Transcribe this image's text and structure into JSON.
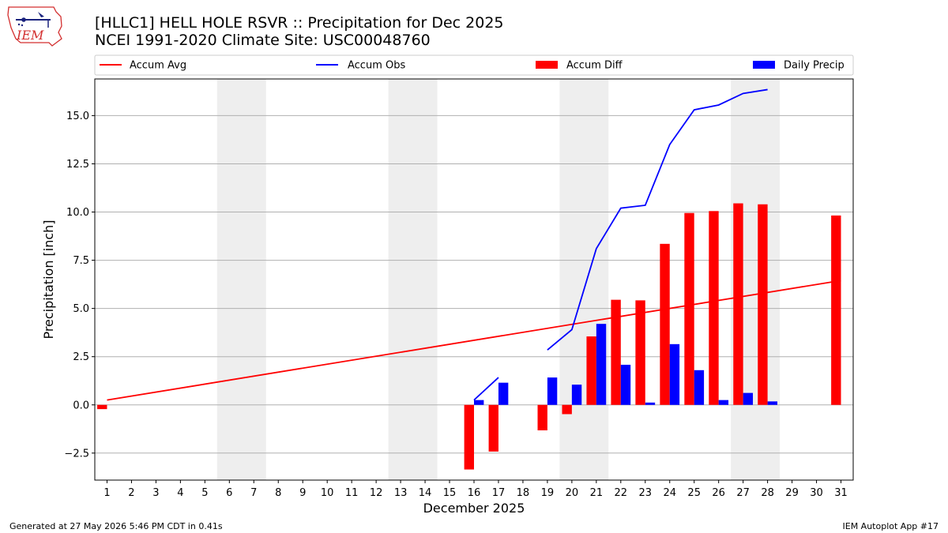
{
  "header": {
    "title_line1": "[HLLC1] HELL HOLE RSVR :: Precipitation for Dec 2025",
    "title_line2": "NCEI 1991-2020 Climate Site: USC00048760"
  },
  "logo": {
    "text": "IEM",
    "color": "#d32f2f",
    "accent": "#1a237e"
  },
  "footer": {
    "left": "Generated at 27 May 2026 5:46 PM CDT in 0.41s",
    "right": "IEM Autoplot App #17"
  },
  "chart_data": {
    "type": "bar",
    "xlabel": "December 2025",
    "ylabel": "Precipitation [inch]",
    "ylim": [
      -3.9,
      16.9
    ],
    "yticks": [
      -2.5,
      0.0,
      2.5,
      5.0,
      7.5,
      10.0,
      12.5,
      15.0
    ],
    "ytick_labels": [
      "−2.5",
      "0.0",
      "2.5",
      "5.0",
      "7.5",
      "10.0",
      "12.5",
      "15.0"
    ],
    "xlim": [
      0.5,
      31.5
    ],
    "days": [
      1,
      2,
      3,
      4,
      5,
      6,
      7,
      8,
      9,
      10,
      11,
      12,
      13,
      14,
      15,
      16,
      17,
      18,
      19,
      20,
      21,
      22,
      23,
      24,
      25,
      26,
      27,
      28,
      29,
      30,
      31
    ],
    "grid": "horizontal",
    "weekend_shading": [
      [
        5.5,
        7.5
      ],
      [
        12.5,
        14.5
      ],
      [
        19.5,
        21.5
      ],
      [
        26.5,
        28.5
      ]
    ],
    "legend": {
      "placement": "top",
      "items": [
        {
          "label": "Accum Avg",
          "kind": "line",
          "color": "#ff0000"
        },
        {
          "label": "Accum Obs",
          "kind": "line",
          "color": "#0000ff"
        },
        {
          "label": "Accum Diff",
          "kind": "bar",
          "color": "#ff0000"
        },
        {
          "label": "Daily Precip",
          "kind": "bar",
          "color": "#0000ff"
        }
      ]
    },
    "series": [
      {
        "name": "Accum Avg",
        "kind": "line",
        "color": "#ff0000",
        "x": [
          1,
          31
        ],
        "values": [
          0.25,
          6.45
        ]
      },
      {
        "name": "Accum Obs",
        "kind": "line",
        "color": "#0000ff",
        "segments": [
          {
            "x": [
              16,
              17
            ],
            "values": [
              0.25,
              1.42
            ]
          },
          {
            "x": [
              19,
              20,
              21,
              22,
              23,
              24,
              25,
              26,
              27,
              28
            ],
            "values": [
              2.85,
              3.9,
              8.1,
              10.2,
              10.35,
              13.5,
              15.3,
              15.55,
              16.15,
              16.35
            ]
          }
        ]
      },
      {
        "name": "Accum Diff",
        "kind": "bar",
        "color": "#ff0000",
        "x": [
          1,
          16,
          17,
          19,
          20,
          21,
          22,
          23,
          24,
          25,
          26,
          27,
          28,
          31
        ],
        "values": [
          -0.22,
          -3.35,
          -2.42,
          -1.32,
          -0.48,
          3.55,
          5.45,
          5.42,
          8.35,
          9.95,
          10.05,
          10.45,
          10.4,
          9.82
        ]
      },
      {
        "name": "Daily Precip",
        "kind": "bar",
        "color": "#0000ff",
        "x": [
          16,
          17,
          19,
          20,
          21,
          22,
          23,
          24,
          25,
          26,
          27,
          28
        ],
        "values": [
          0.25,
          1.15,
          1.42,
          1.05,
          4.2,
          2.08,
          0.12,
          3.15,
          1.8,
          0.25,
          0.62,
          0.18
        ]
      }
    ]
  }
}
